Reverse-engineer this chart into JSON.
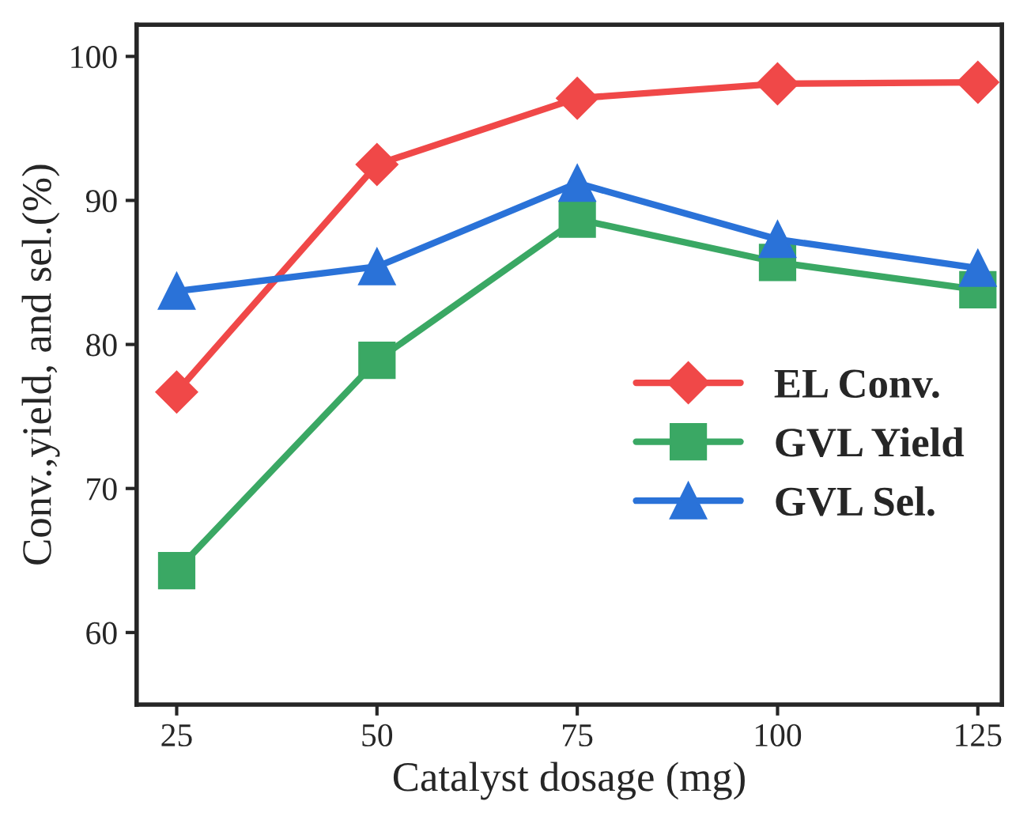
{
  "chart_data": {
    "type": "line",
    "xlabel": "Catalyst dosage (mg)",
    "ylabel": "Conv.,yield, and sel.(%)",
    "x": [
      25,
      50,
      75,
      100,
      125
    ],
    "series": [
      {
        "name": "EL Conv.",
        "color": "#f04848",
        "values": [
          76.7,
          92.5,
          97.1,
          98.1,
          98.2
        ],
        "marker": "diamond"
      },
      {
        "name": "GVL Yield",
        "color": "#3aa864",
        "values": [
          64.3,
          78.9,
          88.7,
          85.7,
          83.8
        ],
        "marker": "square"
      },
      {
        "name": "GVL Sel.",
        "color": "#2a72d8",
        "values": [
          83.7,
          85.4,
          91.2,
          87.3,
          85.3
        ],
        "marker": "triangle"
      }
    ],
    "xlim": [
      20,
      128
    ],
    "xticks": [
      25,
      50,
      75,
      100,
      125
    ],
    "ylim": [
      55,
      102.2
    ],
    "yticks": [
      60,
      70,
      80,
      90,
      100
    ],
    "grid": false,
    "legend": "right",
    "line_style": "solid"
  }
}
